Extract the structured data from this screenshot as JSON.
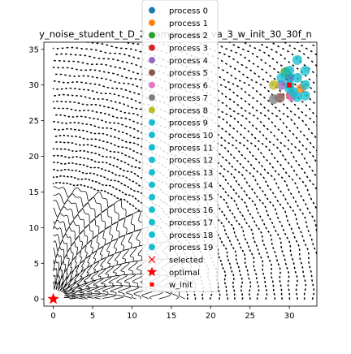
{
  "chart_data": {
    "type": "scatter",
    "title": "y_noise_student_t_D_2_sampl…oise_va_3_w_init_30_30f_n",
    "xlabel": "",
    "ylabel": "",
    "xlim": [
      -1.2,
      33.5
    ],
    "ylim": [
      -1.0,
      36.0
    ],
    "x_ticks": [
      0,
      5,
      10,
      15,
      20,
      25,
      30
    ],
    "y_ticks": [
      0,
      5,
      10,
      15,
      20,
      25,
      30,
      35
    ],
    "grid": false,
    "legend_position": "upper center",
    "legend": [
      {
        "label": "process 0",
        "marker": "circle",
        "color": "#1f77b4"
      },
      {
        "label": "process 1",
        "marker": "circle",
        "color": "#ff7f0e"
      },
      {
        "label": "process 2",
        "marker": "circle",
        "color": "#2ca02c"
      },
      {
        "label": "process 3",
        "marker": "circle",
        "color": "#d62728"
      },
      {
        "label": "process 4",
        "marker": "circle",
        "color": "#9467bd"
      },
      {
        "label": "process 5",
        "marker": "circle",
        "color": "#8c564b"
      },
      {
        "label": "process 6",
        "marker": "circle",
        "color": "#e377c2"
      },
      {
        "label": "process 7",
        "marker": "circle",
        "color": "#7f7f7f"
      },
      {
        "label": "process 8",
        "marker": "circle",
        "color": "#bcbd22"
      },
      {
        "label": "process 9",
        "marker": "circle",
        "color": "#17becf"
      },
      {
        "label": "process 10",
        "marker": "circle",
        "color": "#17becf"
      },
      {
        "label": "process 11",
        "marker": "circle",
        "color": "#17becf"
      },
      {
        "label": "process 12",
        "marker": "circle",
        "color": "#17becf"
      },
      {
        "label": "process 13",
        "marker": "circle",
        "color": "#17becf"
      },
      {
        "label": "process 14",
        "marker": "circle",
        "color": "#17becf"
      },
      {
        "label": "process 15",
        "marker": "circle",
        "color": "#17becf"
      },
      {
        "label": "process 16",
        "marker": "circle",
        "color": "#17becf"
      },
      {
        "label": "process 17",
        "marker": "circle",
        "color": "#17becf"
      },
      {
        "label": "process 18",
        "marker": "circle",
        "color": "#17becf"
      },
      {
        "label": "process 19",
        "marker": "circle",
        "color": "#17becf"
      },
      {
        "label": "selected",
        "marker": "x",
        "color": "#ff0000"
      },
      {
        "label": "optimal",
        "marker": "star",
        "color": "#ff0000"
      },
      {
        "label": "w_init",
        "marker": "square",
        "color": "#ff0000"
      }
    ],
    "optimal": {
      "x": 0,
      "y": 0
    },
    "w_init": {
      "x": 30,
      "y": 30
    },
    "process_points": [
      {
        "process": 0,
        "x": 30.0,
        "y": 31.0
      },
      {
        "process": 1,
        "x": 31.5,
        "y": 29.5
      },
      {
        "process": 2,
        "x": 29.5,
        "y": 31.8
      },
      {
        "process": 3,
        "x": 30.2,
        "y": 28.6
      },
      {
        "process": 4,
        "x": 29.0,
        "y": 30.0
      },
      {
        "process": 5,
        "x": 28.8,
        "y": 28.2
      },
      {
        "process": 6,
        "x": 30.3,
        "y": 28.4
      },
      {
        "process": 7,
        "x": 28.0,
        "y": 28.0
      },
      {
        "process": 8,
        "x": 28.0,
        "y": 30.0
      },
      {
        "process": 9,
        "x": 30.0,
        "y": 32.0
      },
      {
        "process": 10,
        "x": 32.0,
        "y": 32.0
      },
      {
        "process": 11,
        "x": 31.0,
        "y": 33.5
      },
      {
        "process": 12,
        "x": 30.0,
        "y": 30.0
      },
      {
        "process": 13,
        "x": 32.0,
        "y": 30.0
      },
      {
        "process": 14,
        "x": 31.0,
        "y": 31.0
      },
      {
        "process": 15,
        "x": 30.5,
        "y": 29.0
      },
      {
        "process": 16,
        "x": 32.0,
        "y": 28.5
      },
      {
        "process": 17,
        "x": 29.0,
        "y": 31.0
      },
      {
        "process": 18,
        "x": 31.0,
        "y": 28.3
      },
      {
        "process": 19,
        "x": 30.0,
        "y": 29.5
      }
    ]
  }
}
